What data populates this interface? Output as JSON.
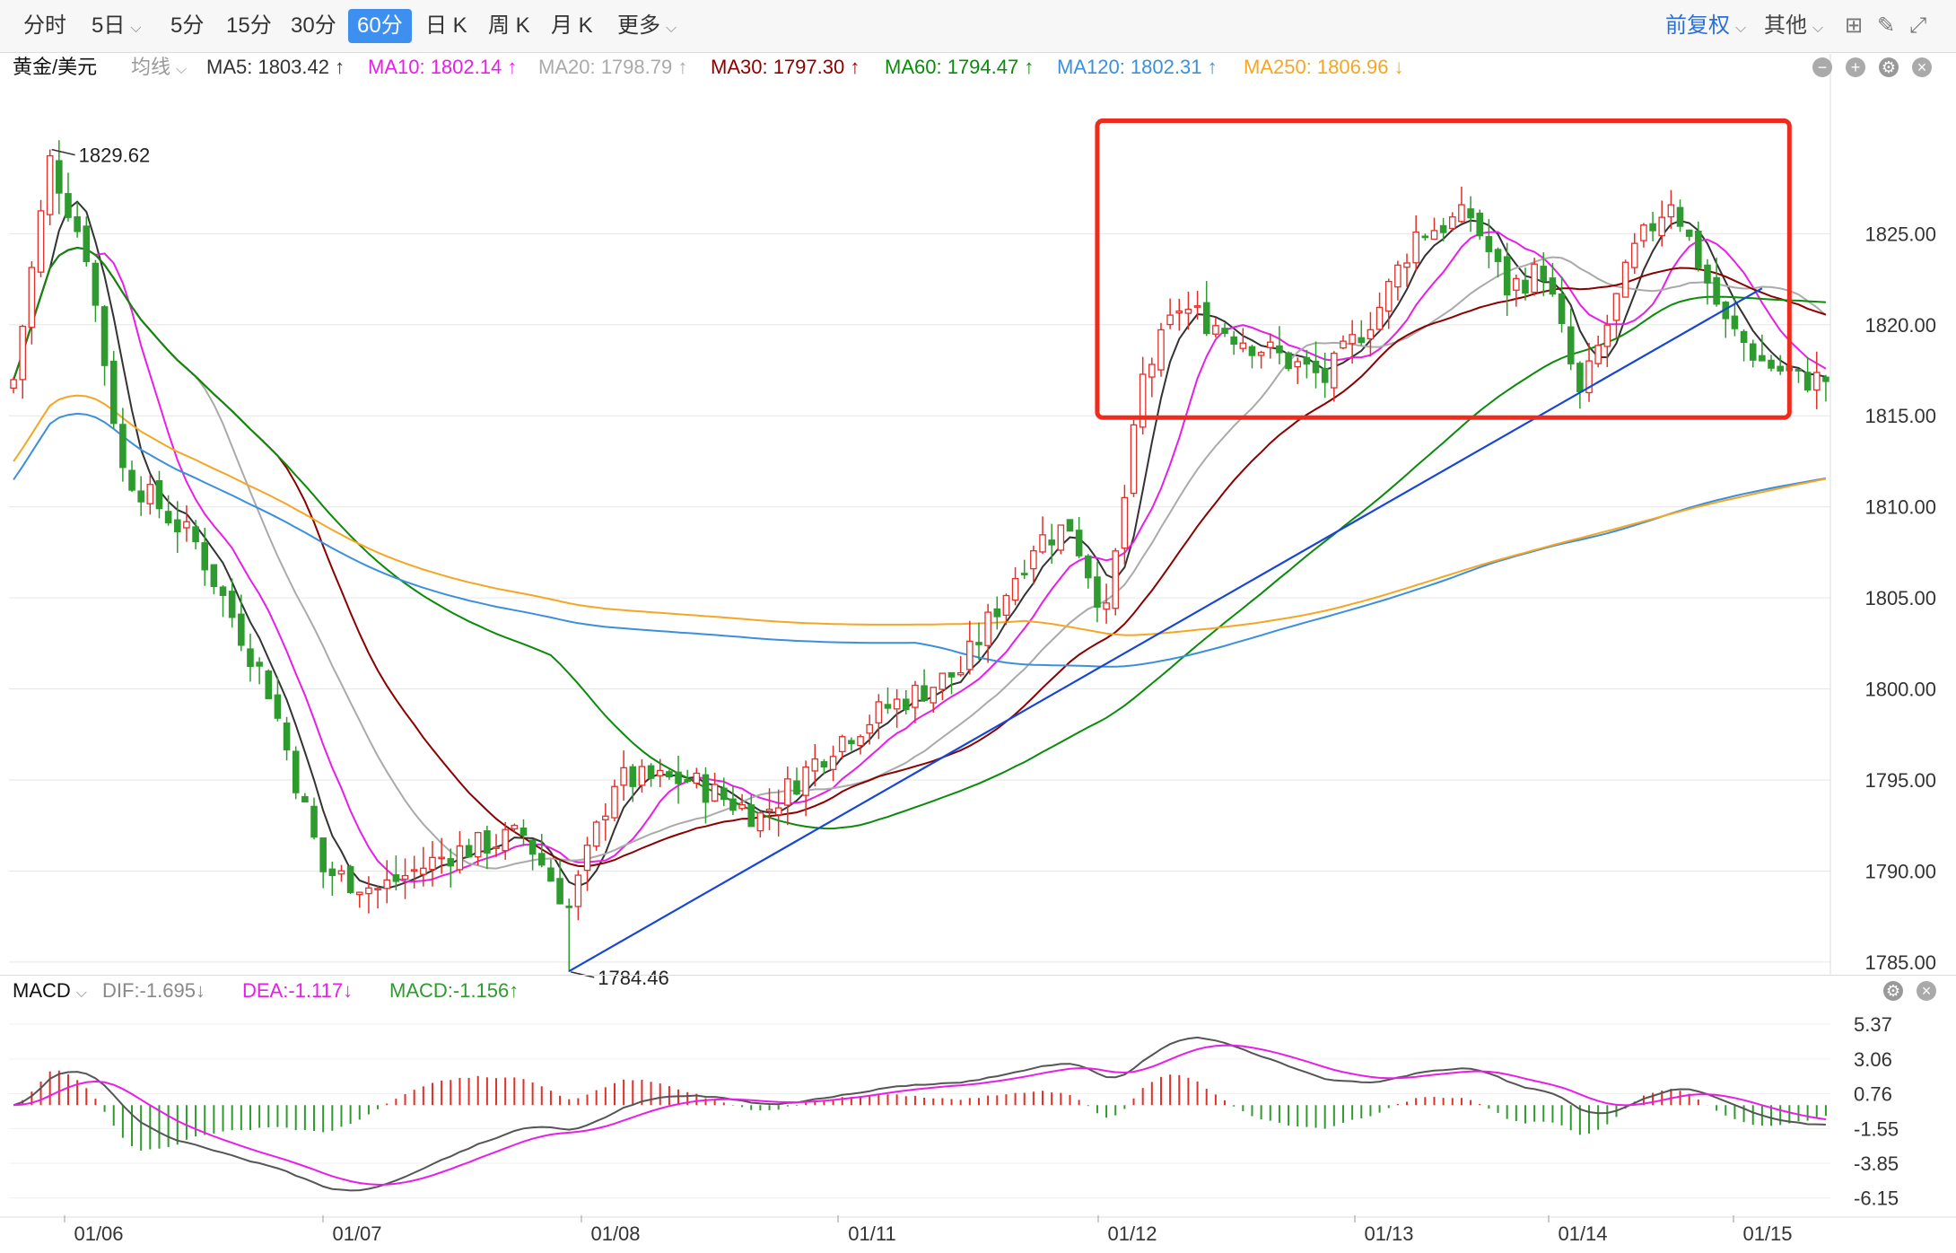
{
  "toolbar": {
    "tabs": [
      {
        "label": "分时",
        "dropdown": false
      },
      {
        "label": "5日",
        "dropdown": true
      },
      {
        "label": "5分",
        "dropdown": false
      },
      {
        "label": "15分",
        "dropdown": false
      },
      {
        "label": "30分",
        "dropdown": false
      },
      {
        "label": "60分",
        "dropdown": false,
        "active": true
      },
      {
        "label": "日 K",
        "dropdown": false
      },
      {
        "label": "周 K",
        "dropdown": false
      },
      {
        "label": "月 K",
        "dropdown": false
      },
      {
        "label": "更多",
        "dropdown": true
      }
    ],
    "adjust_label": "前复权",
    "other_label": "其他",
    "icons": [
      "grid-icon",
      "pen-icon",
      "fullscreen-icon"
    ]
  },
  "legend": {
    "symbol": "黄金/美元",
    "ma_mode": "均线",
    "items": [
      {
        "label": "MA5: 1803.42 ↑",
        "color": "#333333"
      },
      {
        "label": "MA10: 1802.14 ↑",
        "color": "#e81ee8"
      },
      {
        "label": "MA20: 1798.79 ↑",
        "color": "#aaaaaa"
      },
      {
        "label": "MA30: 1797.30 ↑",
        "color": "#8b0000"
      },
      {
        "label": "MA60: 1794.47 ↑",
        "color": "#0b8a0b"
      },
      {
        "label": "MA120: 1802.31 ↑",
        "color": "#3b8fdb"
      },
      {
        "label": "MA250: 1806.96 ↓",
        "color": "#f5a623"
      }
    ]
  },
  "macd_legend": {
    "name": "MACD",
    "items": [
      {
        "label": "DIF:-1.695↓",
        "color": "#888888"
      },
      {
        "label": "DEA:-1.117↓",
        "color": "#e81ee8"
      },
      {
        "label": "MACD:-1.156↑",
        "color": "#2e9b2e"
      }
    ]
  },
  "colors": {
    "up": "#e0302a",
    "down": "#2e9b2e",
    "trendline": "#1846d6",
    "box": "#ee2b1c",
    "grid": "#e6e6e6"
  },
  "chart_data": [
    {
      "type": "candlestick",
      "title": "黄金/美元",
      "price_axis": {
        "ticks": [
          1785.0,
          1790.0,
          1795.0,
          1800.0,
          1805.0,
          1810.0,
          1815.0,
          1820.0,
          1825.0
        ],
        "range": [
          1784.6,
          1833.1
        ]
      },
      "date_labels": [
        "01/06",
        "01/07",
        "01/08",
        "01/11",
        "01/12",
        "01/13",
        "01/14",
        "01/15"
      ],
      "annotations": [
        {
          "text": "1829.62",
          "x": 4,
          "y": 1829.62
        },
        {
          "text": "1784.46",
          "x": 61,
          "y": 1784.46
        }
      ],
      "moving_averages": [
        {
          "name": "MA5",
          "value": 1803.42
        },
        {
          "name": "MA10",
          "value": 1802.14
        },
        {
          "name": "MA20",
          "value": 1798.79
        },
        {
          "name": "MA30",
          "value": 1797.3
        },
        {
          "name": "MA60",
          "value": 1794.47
        },
        {
          "name": "MA120",
          "value": 1802.31
        },
        {
          "name": "MA250",
          "value": 1806.96
        }
      ],
      "trendline": {
        "from": [
          61,
          1784.5
        ],
        "to": [
          192,
          1822.0
        ]
      },
      "highlight_box": {
        "x_from": 119,
        "x_to": 195,
        "price_from": 1814.9,
        "price_to": 1831.2
      }
    },
    {
      "type": "macd",
      "axis_ticks": [
        5.37,
        3.06,
        0.76,
        -1.55,
        -3.85,
        -6.15
      ],
      "range": [
        -7.3,
        6.5
      ],
      "dif": -1.695,
      "dea": -1.117,
      "macd": -1.156
    }
  ]
}
